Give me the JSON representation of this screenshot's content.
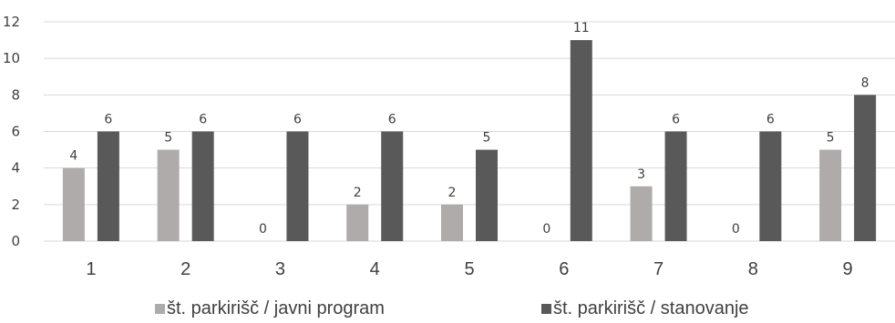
{
  "chart_data": {
    "type": "bar",
    "categories": [
      "1",
      "2",
      "3",
      "4",
      "5",
      "6",
      "7",
      "8",
      "9"
    ],
    "series": [
      {
        "name": "št. parkirišč / javni program",
        "color": "#afabab",
        "values": [
          4,
          5,
          0,
          2,
          2,
          0,
          3,
          0,
          5
        ]
      },
      {
        "name": "št. parkirišč / stanovanje",
        "color": "#595959",
        "values": [
          6,
          6,
          6,
          6,
          5,
          11,
          6,
          6,
          8
        ]
      }
    ],
    "ylim": [
      0,
      12
    ],
    "yticks": [
      0,
      2,
      4,
      6,
      8,
      10,
      12
    ],
    "grid": true,
    "data_labels": true,
    "legend": "bottom"
  }
}
